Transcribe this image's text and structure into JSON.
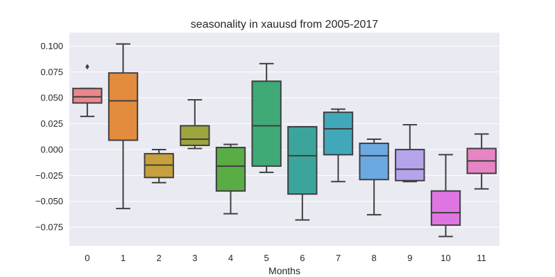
{
  "chart_data": {
    "type": "box",
    "title": "seasonality in xauusd from 2005-2017",
    "xlabel": "Months",
    "ylabel": "",
    "categories": [
      "0",
      "1",
      "2",
      "3",
      "4",
      "5",
      "6",
      "7",
      "8",
      "9",
      "10",
      "11"
    ],
    "yticks": [
      -0.075,
      -0.05,
      -0.025,
      0.0,
      0.025,
      0.05,
      0.075,
      0.1
    ],
    "ytick_labels": [
      "−0.075",
      "−0.050",
      "−0.025",
      "0.000",
      "0.025",
      "0.050",
      "0.075",
      "0.100"
    ],
    "ylim": [
      -0.093,
      0.113
    ],
    "grid": true,
    "boxes": [
      {
        "category": "0",
        "whisker_low": 0.032,
        "q1": 0.045,
        "median": 0.051,
        "q3": 0.059,
        "whisker_high": 0.059,
        "outliers": [
          0.08
        ],
        "color": "#e8878e"
      },
      {
        "category": "1",
        "whisker_low": -0.057,
        "q1": 0.009,
        "median": 0.047,
        "q3": 0.074,
        "whisker_high": 0.102,
        "outliers": [],
        "color": "#e38b3e"
      },
      {
        "category": "2",
        "whisker_low": -0.032,
        "q1": -0.027,
        "median": -0.015,
        "q3": -0.004,
        "whisker_high": 0.0,
        "outliers": [],
        "color": "#c89f3d"
      },
      {
        "category": "3",
        "whisker_low": 0.001,
        "q1": 0.004,
        "median": 0.01,
        "q3": 0.023,
        "whisker_high": 0.048,
        "outliers": [],
        "color": "#9ea43e"
      },
      {
        "category": "4",
        "whisker_low": -0.062,
        "q1": -0.04,
        "median": -0.016,
        "q3": 0.002,
        "whisker_high": 0.005,
        "outliers": [],
        "color": "#5aac44"
      },
      {
        "category": "5",
        "whisker_low": -0.022,
        "q1": -0.016,
        "median": 0.023,
        "q3": 0.066,
        "whisker_high": 0.083,
        "outliers": [],
        "color": "#3faa76"
      },
      {
        "category": "6",
        "whisker_low": -0.068,
        "q1": -0.043,
        "median": -0.006,
        "q3": 0.022,
        "whisker_high": 0.022,
        "outliers": [],
        "color": "#3ca59b"
      },
      {
        "category": "7",
        "whisker_low": -0.031,
        "q1": -0.005,
        "median": 0.02,
        "q3": 0.036,
        "whisker_high": 0.039,
        "outliers": [],
        "color": "#40a8b8"
      },
      {
        "category": "8",
        "whisker_low": -0.063,
        "q1": -0.029,
        "median": -0.006,
        "q3": 0.006,
        "whisker_high": 0.01,
        "outliers": [],
        "color": "#6aaae0"
      },
      {
        "category": "9",
        "whisker_low": -0.031,
        "q1": -0.03,
        "median": -0.019,
        "q3": 0.0,
        "whisker_high": 0.024,
        "outliers": [],
        "color": "#b5a4ea"
      },
      {
        "category": "10",
        "whisker_low": -0.084,
        "q1": -0.073,
        "median": -0.061,
        "q3": -0.04,
        "whisker_high": -0.005,
        "outliers": [],
        "color": "#df75e3"
      },
      {
        "category": "11",
        "whisker_low": -0.038,
        "q1": -0.023,
        "median": -0.011,
        "q3": 0.001,
        "whisker_high": 0.015,
        "outliers": [],
        "color": "#e784c4"
      }
    ],
    "colors": {
      "plot_background": "#eaeaf2",
      "grid": "#ffffff",
      "line": "#3f3f3f"
    }
  }
}
